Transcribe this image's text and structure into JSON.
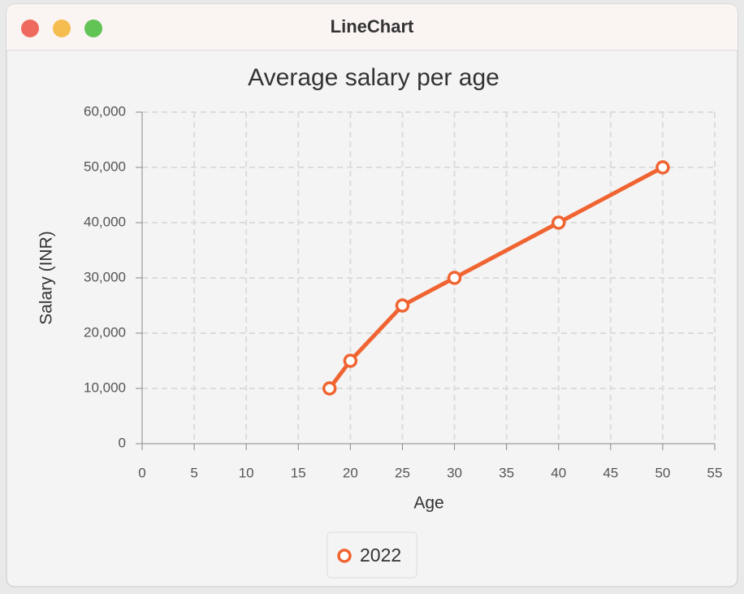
{
  "window": {
    "title": "LineChart"
  },
  "chart_data": {
    "type": "line",
    "title": "Average salary per age",
    "x_label": "Age",
    "y_label": "Salary (INR)",
    "x": [
      18,
      20,
      25,
      30,
      40,
      50
    ],
    "series": [
      {
        "name": "2022",
        "color": "#f06432",
        "values": [
          10000,
          15000,
          25000,
          30000,
          40000,
          50000
        ]
      }
    ],
    "xlim": [
      0,
      55
    ],
    "xticks": [
      0,
      5,
      10,
      15,
      20,
      25,
      30,
      35,
      40,
      45,
      50,
      55
    ],
    "ylim": [
      0,
      60000
    ],
    "yticks": [
      0,
      {
        "value": 10000,
        "label": "10,000"
      },
      {
        "value": 20000,
        "label": "20,000"
      },
      {
        "value": 30000,
        "label": "30,000"
      },
      {
        "value": 40000,
        "label": "40,000"
      },
      {
        "value": 50000,
        "label": "50,000"
      },
      {
        "value": 60000,
        "label": "60,000"
      }
    ],
    "grid": true,
    "legend": "bottom"
  }
}
